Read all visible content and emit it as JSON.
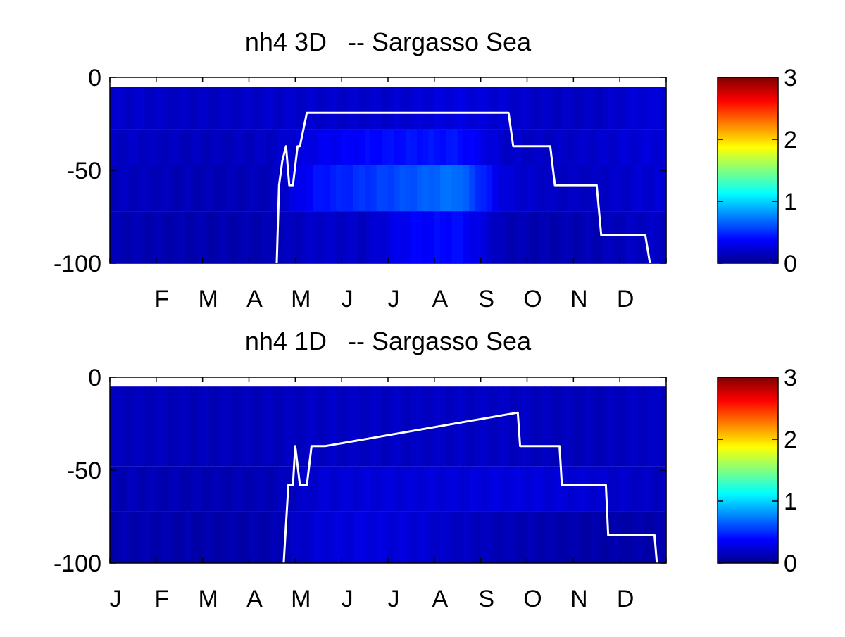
{
  "chart_data": [
    {
      "type": "heatmap",
      "title": "nh4 3D   -- Sargasso Sea",
      "xlabel": "",
      "ylabel": "",
      "x_tick_labels": [
        "F",
        "M",
        "A",
        "M",
        "J",
        "J",
        "A",
        "S",
        "O",
        "N",
        "D"
      ],
      "y_ticks": [
        0,
        -50,
        -100
      ],
      "ylim": [
        -100,
        0
      ],
      "xlim": [
        0,
        12
      ],
      "colorbar": {
        "min": 0,
        "max": 3,
        "ticks": [
          0,
          1,
          2,
          3
        ],
        "colormap": "jet"
      },
      "grid": false,
      "depth_bands": [
        {
          "top": -5,
          "bottom": -28
        },
        {
          "top": -28,
          "bottom": -47
        },
        {
          "top": -47,
          "bottom": -72
        },
        {
          "top": -72,
          "bottom": -100
        }
      ],
      "monthly_values": [
        [
          0.22,
          0.2,
          0.2,
          0.22,
          0.22,
          0.22,
          0.24,
          0.28,
          0.24,
          0.2,
          0.2,
          0.26
        ],
        [
          0.2,
          0.18,
          0.18,
          0.2,
          0.32,
          0.38,
          0.42,
          0.42,
          0.22,
          0.2,
          0.22,
          0.26
        ],
        [
          0.18,
          0.16,
          0.16,
          0.17,
          0.42,
          0.52,
          0.62,
          0.72,
          0.26,
          0.2,
          0.2,
          0.24
        ],
        [
          0.15,
          0.14,
          0.14,
          0.15,
          0.22,
          0.2,
          0.36,
          0.4,
          0.16,
          0.14,
          0.16,
          0.2
        ]
      ],
      "line": {
        "name": "",
        "color": "#ffffff",
        "x": [
          3.6,
          3.65,
          3.72,
          3.8,
          3.87,
          3.95,
          4.05,
          4.1,
          4.25,
          4.35,
          8.6,
          8.7,
          9.5,
          9.6,
          10.5,
          10.6,
          11.55,
          11.65
        ],
        "y": [
          -100,
          -58,
          -45,
          -37,
          -58,
          -58,
          -37,
          -37,
          -19,
          -19,
          -19,
          -37,
          -37,
          -58,
          -58,
          -85,
          -85,
          -100
        ]
      }
    },
    {
      "type": "heatmap",
      "title": "nh4 1D   -- Sargasso Sea",
      "xlabel": "",
      "ylabel": "",
      "x_tick_labels": [
        "J",
        "F",
        "M",
        "A",
        "M",
        "J",
        "J",
        "A",
        "S",
        "O",
        "N",
        "D"
      ],
      "y_ticks": [
        0,
        -50,
        -100
      ],
      "ylim": [
        -100,
        0
      ],
      "xlim": [
        0,
        12
      ],
      "colorbar": {
        "min": 0,
        "max": 3,
        "ticks": [
          0,
          1,
          2,
          3
        ],
        "colormap": "jet"
      },
      "grid": false,
      "depth_bands": [
        {
          "top": -5,
          "bottom": -48
        },
        {
          "top": -48,
          "bottom": -72
        },
        {
          "top": -72,
          "bottom": -100
        }
      ],
      "monthly_values": [
        [
          0.18,
          0.17,
          0.17,
          0.18,
          0.2,
          0.2,
          0.2,
          0.2,
          0.2,
          0.18,
          0.17,
          0.2
        ],
        [
          0.16,
          0.15,
          0.15,
          0.16,
          0.24,
          0.26,
          0.26,
          0.26,
          0.28,
          0.26,
          0.24,
          0.2
        ],
        [
          0.14,
          0.13,
          0.13,
          0.14,
          0.26,
          0.28,
          0.26,
          0.2,
          0.16,
          0.14,
          0.12,
          0.13
        ]
      ],
      "line": {
        "name": "",
        "color": "#ffffff",
        "x": [
          3.75,
          3.85,
          3.95,
          4.0,
          4.1,
          4.25,
          4.35,
          4.65,
          8.8,
          8.85,
          9.7,
          9.75,
          10.7,
          10.75,
          11.75,
          11.8
        ],
        "y": [
          -100,
          -58,
          -58,
          -37,
          -58,
          -58,
          -37,
          -37,
          -19,
          -37,
          -37,
          -58,
          -58,
          -85,
          -85,
          -100
        ]
      }
    }
  ]
}
